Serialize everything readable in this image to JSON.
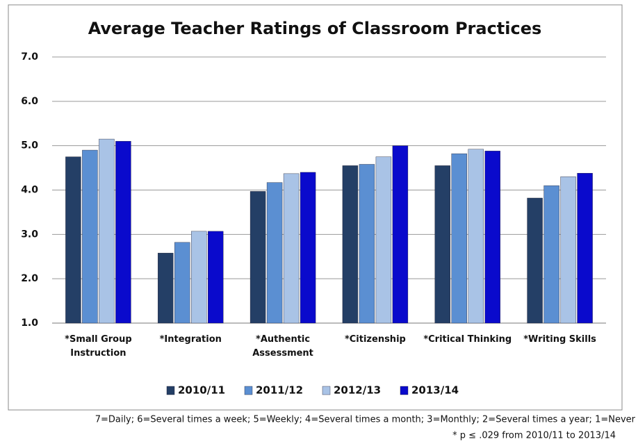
{
  "chart_data": {
    "type": "bar",
    "title": "Average Teacher Ratings of Classroom Practices",
    "categories": [
      "*Small Group Instruction",
      "*Integration",
      "*Authentic Assessment",
      "*Citizenship",
      "*Critical Thinking",
      "*Writing Skills"
    ],
    "series": [
      {
        "name": "2010/11",
        "color": "#243f66",
        "values": [
          4.75,
          2.58,
          3.97,
          4.55,
          4.55,
          3.82
        ]
      },
      {
        "name": "2011/12",
        "color": "#5b8fd2",
        "values": [
          4.9,
          2.82,
          4.17,
          4.58,
          4.82,
          4.1
        ]
      },
      {
        "name": "2012/13",
        "color": "#a9c3e6",
        "values": [
          5.15,
          3.07,
          4.37,
          4.75,
          4.92,
          4.3
        ]
      },
      {
        "name": "2013/14",
        "color": "#0a0acc",
        "values": [
          5.1,
          3.07,
          4.4,
          5.0,
          4.88,
          4.38
        ]
      }
    ],
    "ylim": [
      1,
      7
    ],
    "yticks": [
      {
        "value": 1,
        "label": "1.0"
      },
      {
        "value": 2,
        "label": "2.0"
      },
      {
        "value": 3,
        "label": "3.0"
      },
      {
        "value": 4,
        "label": "4.0"
      },
      {
        "value": 5,
        "label": "5.0"
      },
      {
        "value": 6,
        "label": "6.0"
      },
      {
        "value": 7,
        "label": "7.0"
      }
    ],
    "grid": true,
    "legend": "bottom",
    "notes": [
      "7=Daily; 6=Several times a week; 5=Weekly; 4=Several times a month; 3=Monthly; 2=Several times a year; 1=Never",
      "* p ≤ .029 from 2010/11 to 2013/14"
    ]
  }
}
